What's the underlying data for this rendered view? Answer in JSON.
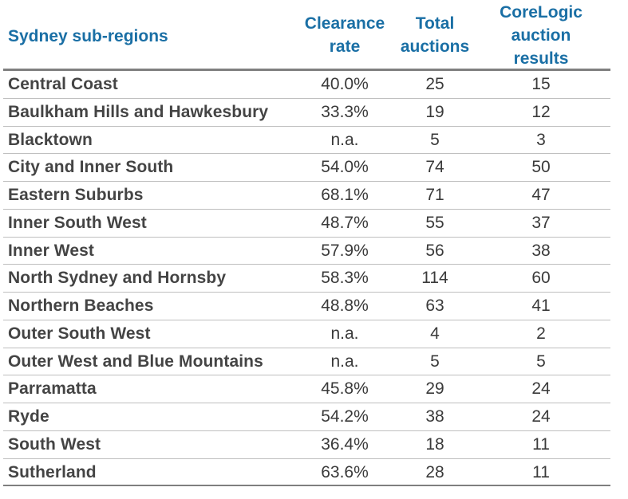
{
  "headers": {
    "region": "Sydney sub-regions",
    "clearance_line1": "Clearance",
    "clearance_line2": "rate",
    "total_line1": "Total",
    "total_line2": "auctions",
    "core_line1": "CoreLogic",
    "core_line2": "auction",
    "core_line3": "results"
  },
  "rows": [
    {
      "region": "Central Coast",
      "clearance": "40.0%",
      "total": "25",
      "core": "15"
    },
    {
      "region": "Baulkham Hills and Hawkesbury",
      "clearance": "33.3%",
      "total": "19",
      "core": "12"
    },
    {
      "region": "Blacktown",
      "clearance": "n.a.",
      "total": "5",
      "core": "3"
    },
    {
      "region": "City and Inner South",
      "clearance": "54.0%",
      "total": "74",
      "core": "50"
    },
    {
      "region": "Eastern Suburbs",
      "clearance": "68.1%",
      "total": "71",
      "core": "47"
    },
    {
      "region": "Inner South West",
      "clearance": "48.7%",
      "total": "55",
      "core": "37"
    },
    {
      "region": "Inner West",
      "clearance": "57.9%",
      "total": "56",
      "core": "38"
    },
    {
      "region": "North Sydney and Hornsby",
      "clearance": "58.3%",
      "total": "114",
      "core": "60"
    },
    {
      "region": "Northern Beaches",
      "clearance": "48.8%",
      "total": "63",
      "core": "41"
    },
    {
      "region": "Outer South West",
      "clearance": "n.a.",
      "total": "4",
      "core": "2"
    },
    {
      "region": "Outer West and Blue Mountains",
      "clearance": "n.a.",
      "total": "5",
      "core": "5"
    },
    {
      "region": "Parramatta",
      "clearance": "45.8%",
      "total": "29",
      "core": "24"
    },
    {
      "region": "Ryde",
      "clearance": "54.2%",
      "total": "38",
      "core": "24"
    },
    {
      "region": "South West",
      "clearance": "36.4%",
      "total": "18",
      "core": "11"
    },
    {
      "region": "Sutherland",
      "clearance": "63.6%",
      "total": "28",
      "core": "11"
    }
  ],
  "colors": {
    "header_text": "#1a6fa5",
    "body_text": "#3a3a3a",
    "rule_heavy": "#7f7f7f",
    "rule_light": "#bfbfbf"
  }
}
